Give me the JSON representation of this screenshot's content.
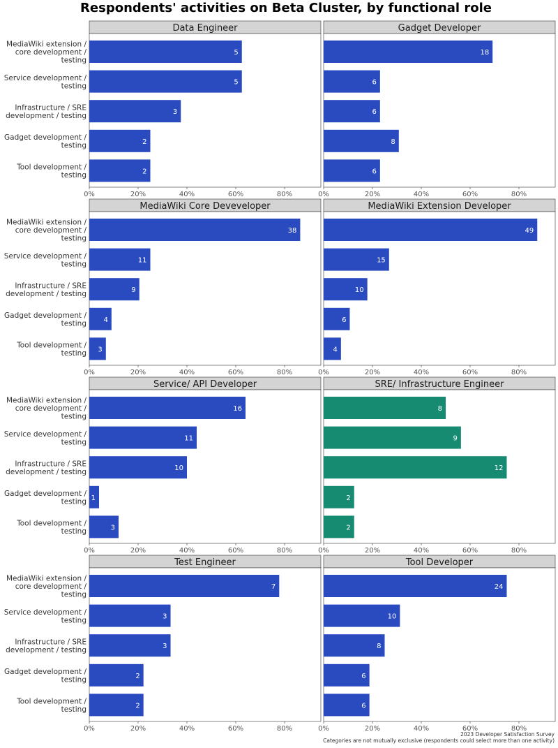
{
  "chart_data": {
    "type": "bar",
    "orientation": "horizontal",
    "title": "Respondents' activities on Beta Cluster, by functional role",
    "categories": [
      [
        "MediaWiki extension /",
        "core development /",
        "testing"
      ],
      [
        "Service development /",
        "testing"
      ],
      [
        "Infrastructure / SRE",
        "development / testing"
      ],
      [
        "Gadget development /",
        "testing"
      ],
      [
        "Tool development /",
        "testing"
      ]
    ],
    "xlim": [
      0,
      0.95
    ],
    "x_ticks": [
      0,
      0.2,
      0.4,
      0.6,
      0.8
    ],
    "x_tick_labels": [
      "0%",
      "20%",
      "40%",
      "60%",
      "80%"
    ],
    "grid": false,
    "colors": {
      "default": "#2a4bc0",
      "highlight": "#178a72"
    },
    "facets": [
      {
        "name": "Data Engineer",
        "counts": [
          5,
          5,
          3,
          2,
          2
        ],
        "shares": [
          0.625,
          0.625,
          0.375,
          0.25,
          0.25
        ],
        "highlight": false
      },
      {
        "name": "Gadget Developer",
        "counts": [
          18,
          6,
          6,
          8,
          6
        ],
        "shares": [
          0.692,
          0.231,
          0.231,
          0.308,
          0.231
        ],
        "highlight": false
      },
      {
        "name": "MediaWiki Core Deveveloper",
        "counts": [
          38,
          11,
          9,
          4,
          3
        ],
        "shares": [
          0.864,
          0.25,
          0.205,
          0.091,
          0.068
        ],
        "highlight": false
      },
      {
        "name": "MediaWiki Extension Developer",
        "counts": [
          49,
          15,
          10,
          6,
          4
        ],
        "shares": [
          0.875,
          0.268,
          0.179,
          0.107,
          0.071
        ],
        "highlight": false
      },
      {
        "name": "Service/ API Developer",
        "counts": [
          16,
          11,
          10,
          1,
          3
        ],
        "shares": [
          0.64,
          0.44,
          0.4,
          0.04,
          0.12
        ],
        "highlight": false
      },
      {
        "name": "SRE/ Infrastructure Engineer",
        "counts": [
          8,
          9,
          12,
          2,
          2
        ],
        "shares": [
          0.5,
          0.5625,
          0.75,
          0.125,
          0.125
        ],
        "highlight": true
      },
      {
        "name": "Test Engineer",
        "counts": [
          7,
          3,
          3,
          2,
          2
        ],
        "shares": [
          0.778,
          0.333,
          0.333,
          0.222,
          0.222
        ],
        "highlight": false
      },
      {
        "name": "Tool Developer",
        "counts": [
          24,
          10,
          8,
          6,
          6
        ],
        "shares": [
          0.75,
          0.3125,
          0.25,
          0.1875,
          0.1875
        ],
        "highlight": false
      }
    ],
    "caption": [
      "2023 Developer Satisfaction Survey",
      "Categories are not mutually exclusive (respondents could select more than one activity)"
    ]
  }
}
